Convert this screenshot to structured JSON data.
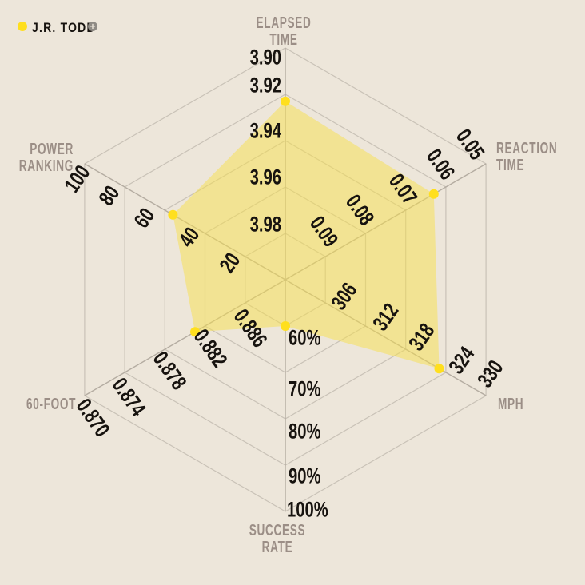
{
  "legend": {
    "player": "J.R. TODD",
    "add_glyph": "+"
  },
  "colors": {
    "bg": "#EDE6DA",
    "ink": "#17130F",
    "muted": "#9B8E86",
    "grid": "#C9C2B7",
    "spoke": "#B4ACA1",
    "series": "#FFDF1E",
    "series-fill": "#F7DF4B",
    "plus-bg": "#8F8B85"
  },
  "chart_data": {
    "type": "radar",
    "title": "",
    "legend_position": "top-left",
    "grid": true,
    "rings": 5,
    "series": [
      {
        "name": "J.R. TODD",
        "color": "#FFDF1E"
      }
    ],
    "axes": [
      {
        "key": "elapsed-time",
        "title_lines": [
          "ELAPSED",
          "TIME"
        ],
        "ticks": [
          "3.98",
          "3.96",
          "3.94",
          "3.92",
          "3.90"
        ],
        "scale": {
          "center": 4.0,
          "outer": 3.9
        },
        "value": 3.923
      },
      {
        "key": "reaction-time",
        "title_lines": [
          "REACTION",
          "TIME"
        ],
        "ticks": [
          "0.09",
          "0.08",
          "0.07",
          "0.06",
          "0.05"
        ],
        "scale": {
          "center": 0.1,
          "outer": 0.05
        },
        "value": 0.063
      },
      {
        "key": "mph",
        "title_lines": [
          "MPH"
        ],
        "ticks": [
          "306",
          "312",
          "318",
          "324",
          "330"
        ],
        "scale": {
          "center": 300,
          "outer": 330
        },
        "value": 323
      },
      {
        "key": "success-rate",
        "title_lines": [
          "SUCCESS",
          "RATE"
        ],
        "ticks": [
          "60%",
          "70%",
          "80%",
          "90%",
          "100%"
        ],
        "scale": {
          "center": 50,
          "outer": 100
        },
        "value": 60
      },
      {
        "key": "60-foot",
        "title_lines": [
          "60-FOOT"
        ],
        "ticks": [
          "0.886",
          "0.882",
          "0.878",
          "0.874",
          "0.870"
        ],
        "scale": {
          "center": 0.89,
          "outer": 0.87
        },
        "value": 0.881
      },
      {
        "key": "power-ranking",
        "title_lines": [
          "POWER",
          "RANKING"
        ],
        "ticks": [
          "20",
          "40",
          "60",
          "80",
          "100"
        ],
        "scale": {
          "center": 0,
          "outer": 100
        },
        "value": 56
      }
    ]
  }
}
